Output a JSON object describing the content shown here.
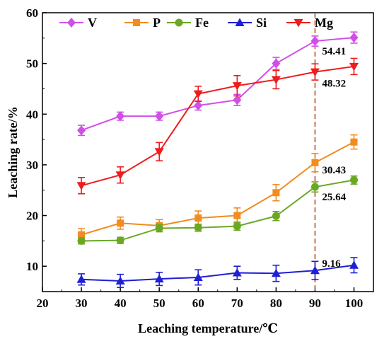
{
  "chart_data": {
    "type": "line",
    "xlabel": "Leaching temperature/℃",
    "ylabel": "Leaching rate/%",
    "xlim": [
      20,
      105
    ],
    "ylim": [
      5,
      60
    ],
    "xticks": [
      20,
      30,
      40,
      50,
      60,
      70,
      80,
      90,
      100
    ],
    "yticks": [
      10,
      20,
      30,
      40,
      50,
      60
    ],
    "x": [
      30,
      40,
      50,
      60,
      70,
      80,
      90,
      100
    ],
    "legend_position": "top",
    "series": [
      {
        "name": "V",
        "color": "#d24ee8",
        "marker": "diamond",
        "values": [
          36.8,
          39.6,
          39.6,
          41.7,
          42.8,
          50.0,
          54.41,
          55.1
        ],
        "errors": [
          1.0,
          0.8,
          0.8,
          0.9,
          1.1,
          1.2,
          1.0,
          1.1
        ]
      },
      {
        "name": "P",
        "color": "#f28c1f",
        "marker": "square",
        "values": [
          16.2,
          18.5,
          18.0,
          19.5,
          20.0,
          24.5,
          30.43,
          34.5
        ],
        "errors": [
          1.2,
          1.2,
          1.2,
          1.4,
          1.5,
          1.6,
          1.8,
          1.4
        ]
      },
      {
        "name": "Fe",
        "color": "#6aa824",
        "marker": "circle",
        "values": [
          15.0,
          15.1,
          17.5,
          17.6,
          17.9,
          19.9,
          25.64,
          27.0
        ],
        "errors": [
          0.6,
          0.6,
          0.7,
          0.7,
          0.8,
          0.9,
          1.0,
          0.8
        ]
      },
      {
        "name": "Si",
        "color": "#1f1fd6",
        "marker": "triangle",
        "values": [
          7.4,
          7.1,
          7.5,
          7.8,
          8.7,
          8.6,
          9.16,
          10.2
        ],
        "errors": [
          1.1,
          1.3,
          1.3,
          1.5,
          1.3,
          1.6,
          1.8,
          1.5
        ]
      },
      {
        "name": "Mg",
        "color": "#ee1c1c",
        "marker": "triangle-down",
        "values": [
          25.9,
          28.0,
          32.6,
          44.0,
          45.6,
          46.8,
          48.32,
          49.4
        ],
        "errors": [
          1.6,
          1.6,
          1.8,
          1.5,
          2.0,
          1.8,
          1.6,
          1.6
        ]
      }
    ],
    "reference_line": {
      "x": 90,
      "color": "#b5552a",
      "style": "dashed"
    },
    "annotations": [
      {
        "series": "V",
        "x": 90,
        "text": "54.41"
      },
      {
        "series": "Mg",
        "x": 90,
        "text": "48.32"
      },
      {
        "series": "P",
        "x": 90,
        "text": "30.43"
      },
      {
        "series": "Fe",
        "x": 90,
        "text": "25.64"
      },
      {
        "series": "Si",
        "x": 90,
        "text": "9.16"
      }
    ]
  }
}
